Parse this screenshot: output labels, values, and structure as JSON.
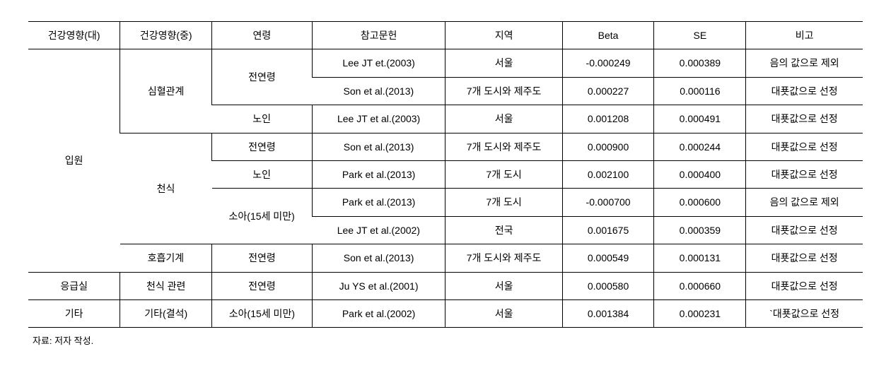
{
  "table": {
    "columns": [
      {
        "key": "cat1",
        "label": "건강영향(대)",
        "class": "col-cat1"
      },
      {
        "key": "cat2",
        "label": "건강영향(중)",
        "class": "col-cat2"
      },
      {
        "key": "age",
        "label": "연령",
        "class": "col-age"
      },
      {
        "key": "ref",
        "label": "참고문헌",
        "class": "col-ref"
      },
      {
        "key": "region",
        "label": "지역",
        "class": "col-region"
      },
      {
        "key": "beta",
        "label": "Beta",
        "class": "col-beta"
      },
      {
        "key": "se",
        "label": "SE",
        "class": "col-se"
      },
      {
        "key": "note",
        "label": "비고",
        "class": "col-note"
      }
    ],
    "groups": [
      {
        "cat1": "입원",
        "cat2groups": [
          {
            "cat2": "심혈관계",
            "agegroups": [
              {
                "age": "전연령",
                "rows": [
                  {
                    "ref": "Lee JT et.(2003)",
                    "region": "서울",
                    "beta": "-0.000249",
                    "se": "0.000389",
                    "note": "음의 값으로 제외"
                  },
                  {
                    "ref": "Son et al.(2013)",
                    "region": "7개 도시와 제주도",
                    "beta": "0.000227",
                    "se": "0.000116",
                    "note": "대푯값으로 선정"
                  }
                ]
              },
              {
                "age": "노인",
                "rows": [
                  {
                    "ref": "Lee JT et al.(2003)",
                    "region": "서울",
                    "beta": "0.001208",
                    "se": "0.000491",
                    "note": "대푯값으로 선정"
                  }
                ]
              }
            ]
          },
          {
            "cat2": "천식",
            "agegroups": [
              {
                "age": "전연령",
                "rows": [
                  {
                    "ref": "Son et al.(2013)",
                    "region": "7개 도시와 제주도",
                    "beta": "0.000900",
                    "se": "0.000244",
                    "note": "대푯값으로 선정"
                  }
                ]
              },
              {
                "age": "노인",
                "rows": [
                  {
                    "ref": "Park et al.(2013)",
                    "region": "7개 도시",
                    "beta": "0.002100",
                    "se": "0.000400",
                    "note": "대푯값으로 선정"
                  }
                ]
              },
              {
                "age": "소아(15세 미만)",
                "rows": [
                  {
                    "ref": "Park et al.(2013)",
                    "region": "7개 도시",
                    "beta": "-0.000700",
                    "se": "0.000600",
                    "note": "음의 값으로 제외"
                  },
                  {
                    "ref": "Lee JT et al.(2002)",
                    "region": "전국",
                    "beta": "0.001675",
                    "se": "0.000359",
                    "note": "대푯값으로 선정"
                  }
                ]
              }
            ]
          },
          {
            "cat2": "호흡기계",
            "agegroups": [
              {
                "age": "전연령",
                "rows": [
                  {
                    "ref": "Son et al.(2013)",
                    "region": "7개 도시와 제주도",
                    "beta": "0.000549",
                    "se": "0.000131",
                    "note": "대푯값으로 선정"
                  }
                ]
              }
            ]
          }
        ]
      },
      {
        "cat1": "응급실",
        "cat2groups": [
          {
            "cat2": "천식 관련",
            "agegroups": [
              {
                "age": "전연령",
                "rows": [
                  {
                    "ref": "Ju YS et al.(2001)",
                    "region": "서울",
                    "beta": "0.000580",
                    "se": "0.000660",
                    "note": "대푯값으로 선정"
                  }
                ]
              }
            ]
          }
        ]
      },
      {
        "cat1": "기타",
        "cat2groups": [
          {
            "cat2": "기타(결석)",
            "agegroups": [
              {
                "age": "소아(15세 미만)",
                "rows": [
                  {
                    "ref": "Park et al.(2002)",
                    "region": "서울",
                    "beta": "0.001384",
                    "se": "0.000231",
                    "note": "`대푯값으로 선정"
                  }
                ]
              }
            ]
          }
        ]
      }
    ]
  },
  "source_note": "자료: 저자 작성."
}
